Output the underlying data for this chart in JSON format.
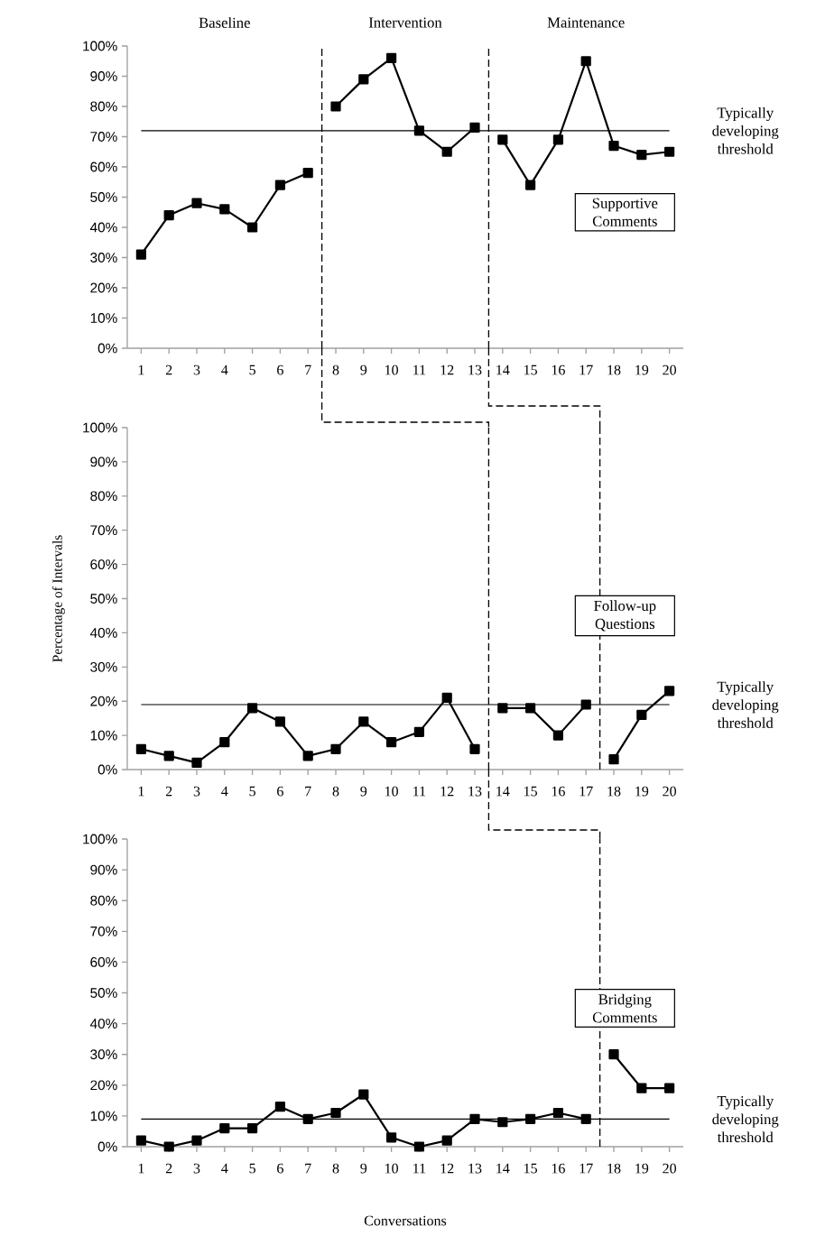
{
  "chart_data": [
    {
      "type": "line",
      "title": "Supportive Comments",
      "marker": "square",
      "line_style": "solid",
      "x": [
        1,
        2,
        3,
        4,
        5,
        6,
        7,
        8,
        9,
        10,
        11,
        12,
        13,
        14,
        15,
        16,
        17,
        18,
        19,
        20
      ],
      "series": [
        {
          "color": "#000000",
          "values": [
            31,
            44,
            48,
            46,
            40,
            54,
            58,
            null,
            null,
            null,
            null,
            null,
            null,
            null,
            null,
            null,
            null,
            null,
            null,
            null
          ]
        },
        {
          "color": "#000000",
          "values": [
            null,
            null,
            null,
            null,
            null,
            null,
            null,
            80,
            89,
            96,
            72,
            65,
            73,
            null,
            null,
            null,
            null,
            null,
            null,
            null
          ]
        },
        {
          "color": "#000000",
          "values": [
            null,
            null,
            null,
            null,
            null,
            null,
            null,
            null,
            null,
            null,
            null,
            null,
            null,
            69,
            54,
            69,
            95,
            67,
            64,
            65
          ]
        }
      ],
      "xlim": [
        0.5,
        20.5
      ],
      "xticks": [
        1,
        2,
        3,
        4,
        5,
        6,
        7,
        8,
        9,
        10,
        11,
        12,
        13,
        14,
        15,
        16,
        17,
        18,
        19,
        20
      ],
      "ylim": [
        0,
        100
      ],
      "yticks": [
        {
          "value": 0,
          "label": "0%"
        },
        {
          "value": 10,
          "label": "10%"
        },
        {
          "value": 20,
          "label": "20%"
        },
        {
          "value": 30,
          "label": "30%"
        },
        {
          "value": 40,
          "label": "40%"
        },
        {
          "value": 50,
          "label": "50%"
        },
        {
          "value": 60,
          "label": "60%"
        },
        {
          "value": 70,
          "label": "70%"
        },
        {
          "value": 80,
          "label": "80%"
        },
        {
          "value": 90,
          "label": "90%"
        },
        {
          "value": 100,
          "label": "100%"
        }
      ],
      "ref_lines": [
        {
          "axis": "y",
          "value": 72,
          "label": "Typically developing threshold",
          "line_style": "solid"
        },
        {
          "axis": "x",
          "value": 7.5,
          "line_style": "dashed"
        },
        {
          "axis": "x",
          "value": 13.5,
          "line_style": "dashed"
        }
      ],
      "annotations": [
        "Baseline",
        "Intervention",
        "Maintenance"
      ]
    },
    {
      "type": "line",
      "title": "Follow-up Questions",
      "ylabel": "Percentage of Intervals",
      "marker": "square",
      "line_style": "solid",
      "x": [
        1,
        2,
        3,
        4,
        5,
        6,
        7,
        8,
        9,
        10,
        11,
        12,
        13,
        14,
        15,
        16,
        17,
        18,
        19,
        20
      ],
      "series": [
        {
          "color": "#000000",
          "values": [
            6,
            4,
            2,
            8,
            18,
            14,
            4,
            6,
            14,
            8,
            11,
            21,
            6,
            null,
            null,
            null,
            null,
            null,
            null,
            null
          ]
        },
        {
          "color": "#000000",
          "values": [
            null,
            null,
            null,
            null,
            null,
            null,
            null,
            null,
            null,
            null,
            null,
            null,
            null,
            18,
            18,
            10,
            19,
            null,
            null,
            null
          ]
        },
        {
          "color": "#000000",
          "values": [
            null,
            null,
            null,
            null,
            null,
            null,
            null,
            null,
            null,
            null,
            null,
            null,
            null,
            null,
            null,
            null,
            null,
            3,
            16,
            23
          ]
        }
      ],
      "xlim": [
        0.5,
        20.5
      ],
      "xticks": [
        1,
        2,
        3,
        4,
        5,
        6,
        7,
        8,
        9,
        10,
        11,
        12,
        13,
        14,
        15,
        16,
        17,
        18,
        19,
        20
      ],
      "ylim": [
        0,
        100
      ],
      "yticks": [
        {
          "value": 0,
          "label": "0%"
        },
        {
          "value": 10,
          "label": "10%"
        },
        {
          "value": 20,
          "label": "20%"
        },
        {
          "value": 30,
          "label": "30%"
        },
        {
          "value": 40,
          "label": "40%"
        },
        {
          "value": 50,
          "label": "50%"
        },
        {
          "value": 60,
          "label": "60%"
        },
        {
          "value": 70,
          "label": "70%"
        },
        {
          "value": 80,
          "label": "80%"
        },
        {
          "value": 90,
          "label": "90%"
        },
        {
          "value": 100,
          "label": "100%"
        }
      ],
      "ref_lines": [
        {
          "axis": "y",
          "value": 19,
          "label": "Typically developing threshold",
          "line_style": "solid"
        },
        {
          "axis": "x",
          "value": 13.5,
          "line_style": "dashed"
        },
        {
          "axis": "x",
          "value": 17.5,
          "line_style": "dashed"
        }
      ]
    },
    {
      "type": "line",
      "title": "Bridging Comments",
      "xlabel": "Conversations",
      "marker": "square",
      "line_style": "solid",
      "x": [
        1,
        2,
        3,
        4,
        5,
        6,
        7,
        8,
        9,
        10,
        11,
        12,
        13,
        14,
        15,
        16,
        17,
        18,
        19,
        20
      ],
      "series": [
        {
          "color": "#000000",
          "values": [
            2,
            0,
            2,
            6,
            6,
            13,
            9,
            11,
            17,
            3,
            0,
            2,
            9,
            8,
            9,
            11,
            9,
            null,
            null,
            null
          ]
        },
        {
          "color": "#000000",
          "values": [
            null,
            null,
            null,
            null,
            null,
            null,
            null,
            null,
            null,
            null,
            null,
            null,
            null,
            null,
            null,
            null,
            null,
            30,
            19,
            19
          ]
        }
      ],
      "xlim": [
        0.5,
        20.5
      ],
      "xticks": [
        1,
        2,
        3,
        4,
        5,
        6,
        7,
        8,
        9,
        10,
        11,
        12,
        13,
        14,
        15,
        16,
        17,
        18,
        19,
        20
      ],
      "ylim": [
        0,
        100
      ],
      "yticks": [
        {
          "value": 0,
          "label": "0%"
        },
        {
          "value": 10,
          "label": "10%"
        },
        {
          "value": 20,
          "label": "20%"
        },
        {
          "value": 30,
          "label": "30%"
        },
        {
          "value": 40,
          "label": "40%"
        },
        {
          "value": 50,
          "label": "50%"
        },
        {
          "value": 60,
          "label": "60%"
        },
        {
          "value": 70,
          "label": "70%"
        },
        {
          "value": 80,
          "label": "80%"
        },
        {
          "value": 90,
          "label": "90%"
        },
        {
          "value": 100,
          "label": "100%"
        }
      ],
      "ref_lines": [
        {
          "axis": "y",
          "value": 9,
          "label": "Typically developing threshold",
          "line_style": "solid"
        },
        {
          "axis": "x",
          "value": 17.5,
          "line_style": "dashed"
        }
      ]
    }
  ]
}
